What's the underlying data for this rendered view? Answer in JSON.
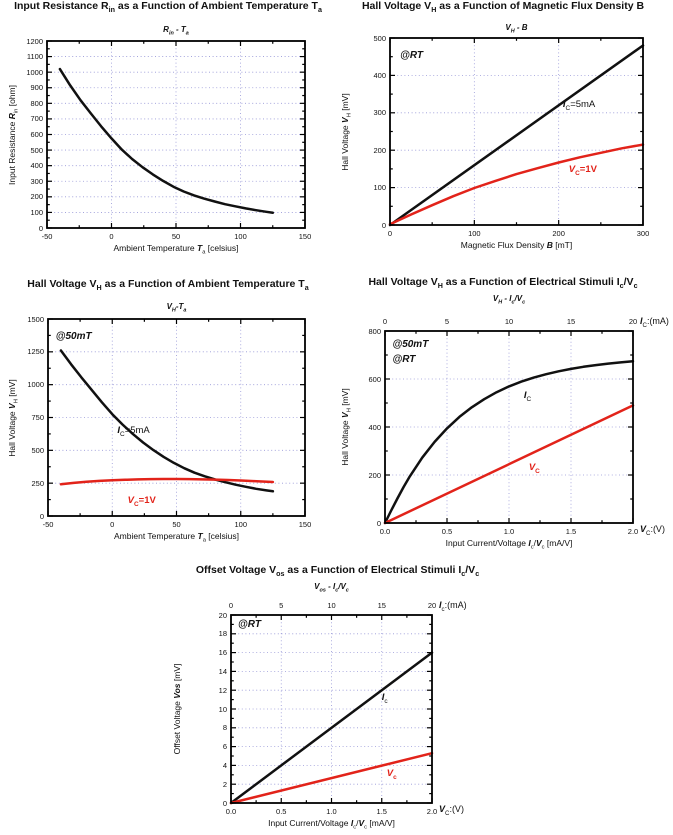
{
  "page": {
    "background": "#ffffff"
  },
  "colors": {
    "black_series": "#111111",
    "red_series": "#e2231a",
    "grid": "#9898d8",
    "frame": "#000000"
  },
  "chart_data": [
    {
      "type": "line",
      "title": "Input Resistance R_{in} as a Function of Ambient Temperature T_{a}",
      "subtitle": "R_{in} - T_{a}",
      "annotations": [],
      "x": {
        "label": "Ambient Temperature *T*_{a} [celsius]",
        "min": -50,
        "max": 150,
        "majors": [
          -50,
          0,
          50,
          100,
          150
        ],
        "tick_labels": [
          "-50",
          "0",
          "50",
          "100",
          "150"
        ]
      },
      "y": {
        "label": "Input Resistance *R*_{in} [ohm]",
        "min": 0,
        "max": 1200,
        "majors": [
          0,
          100,
          200,
          300,
          400,
          500,
          600,
          700,
          800,
          900,
          1000,
          1100,
          1200
        ],
        "tick_labels": [
          "0",
          "100",
          "200",
          "300",
          "400",
          "500",
          "600",
          "700",
          "800",
          "900",
          "1000",
          "1100",
          "1200"
        ]
      },
      "series": [
        {
          "name": "Rin",
          "color": "#111111",
          "points": [
            [
              -40,
              1020
            ],
            [
              -32,
              915
            ],
            [
              -24,
              820
            ],
            [
              -16,
              735
            ],
            [
              -8,
              652
            ],
            [
              0,
              575
            ],
            [
              8,
              503
            ],
            [
              16,
              443
            ],
            [
              24,
              390
            ],
            [
              32,
              344
            ],
            [
              40,
              302
            ],
            [
              48,
              265
            ],
            [
              56,
              234
            ],
            [
              64,
              209
            ],
            [
              72,
              188
            ],
            [
              80,
              170
            ],
            [
              88,
              153
            ],
            [
              96,
              139
            ],
            [
              104,
              126
            ],
            [
              112,
              114
            ],
            [
              120,
              104
            ],
            [
              125,
              98
            ]
          ]
        }
      ]
    },
    {
      "type": "line",
      "title": "Hall Voltage V_{H} as a Function of Magnetic Flux Density B",
      "subtitle": "V_{H} - B",
      "annotations": [
        {
          "text": "@RT",
          "x": 12,
          "y": 452
        }
      ],
      "x": {
        "label": "Magnetic Flux Density *B* [mT]",
        "min": 0,
        "max": 300,
        "majors": [
          0,
          100,
          200,
          300
        ],
        "tick_labels": [
          "0",
          "100",
          "200",
          "300"
        ]
      },
      "y": {
        "label": "Hall Voltage *V*_{H} [mV]",
        "min": 0,
        "max": 500,
        "majors": [
          0,
          100,
          200,
          300,
          400,
          500
        ],
        "tick_labels": [
          "0",
          "100",
          "200",
          "300",
          "400",
          "500"
        ]
      },
      "series": [
        {
          "name": "Ic",
          "color": "#111111",
          "label": {
            "text": "*I*_{C}=5mA",
            "x": 205,
            "y": 322
          },
          "points": [
            [
              0,
              0
            ],
            [
              300,
              480
            ]
          ]
        },
        {
          "name": "Vc",
          "color": "#e2231a",
          "label": {
            "text": "*V*_{C}=1V",
            "x": 212,
            "y": 148
          },
          "points": [
            [
              0,
              2
            ],
            [
              25,
              28
            ],
            [
              50,
              53
            ],
            [
              75,
              77
            ],
            [
              100,
              99
            ],
            [
              125,
              118
            ],
            [
              150,
              136
            ],
            [
              175,
              152
            ],
            [
              200,
              167
            ],
            [
              225,
              181
            ],
            [
              250,
              193
            ],
            [
              275,
              205
            ],
            [
              300,
              215
            ]
          ]
        }
      ]
    },
    {
      "type": "line",
      "title": "Hall Voltage V_{H} as a Function of Ambient Temperature T_{a}",
      "subtitle": "V_{H}-T_{a}",
      "annotations": [
        {
          "text": "@50mT",
          "x": -44,
          "y": 1365
        }
      ],
      "x": {
        "label": "Ambient Temperature *T*_{a} [celsius]",
        "min": -50,
        "max": 150,
        "majors": [
          -50,
          0,
          50,
          100,
          150
        ],
        "tick_labels": [
          "-50",
          "0",
          "50",
          "100",
          "150"
        ]
      },
      "y": {
        "label": "Hall Voltage *V*_{H} [mV]",
        "min": 0,
        "max": 1500,
        "majors": [
          0,
          250,
          500,
          750,
          1000,
          1250,
          1500
        ],
        "tick_labels": [
          "0",
          "250",
          "500",
          "750",
          "1000",
          "1250",
          "1500"
        ]
      },
      "series": [
        {
          "name": "Ic",
          "color": "#111111",
          "label": {
            "text": "*I*_{C}=5mA",
            "x": 4,
            "y": 648
          },
          "points": [
            [
              -40,
              1260
            ],
            [
              -32,
              1155
            ],
            [
              -24,
              1055
            ],
            [
              -16,
              960
            ],
            [
              -8,
              865
            ],
            [
              0,
              775
            ],
            [
              8,
              697
            ],
            [
              16,
              625
            ],
            [
              24,
              560
            ],
            [
              32,
              502
            ],
            [
              40,
              450
            ],
            [
              48,
              404
            ],
            [
              56,
              364
            ],
            [
              64,
              330
            ],
            [
              72,
              302
            ],
            [
              80,
              278
            ],
            [
              88,
              257
            ],
            [
              96,
              238
            ],
            [
              104,
              222
            ],
            [
              112,
              207
            ],
            [
              120,
              195
            ],
            [
              125,
              188
            ]
          ]
        },
        {
          "name": "Vc",
          "color": "#e2231a",
          "label": {
            "text": "*V*_{C}=1V",
            "x": 12,
            "y": 118
          },
          "points": [
            [
              -40,
              241
            ],
            [
              -30,
              252
            ],
            [
              -20,
              261
            ],
            [
              -10,
              267
            ],
            [
              0,
              272
            ],
            [
              10,
              276
            ],
            [
              20,
              279
            ],
            [
              30,
              281
            ],
            [
              40,
              282
            ],
            [
              50,
              282
            ],
            [
              60,
              281
            ],
            [
              70,
              279
            ],
            [
              80,
              277
            ],
            [
              90,
              274
            ],
            [
              100,
              270
            ],
            [
              110,
              266
            ],
            [
              125,
              259
            ]
          ]
        }
      ]
    },
    {
      "type": "line",
      "title": "Hall Voltage V_{H} as a Function of Electrical Stimuli I_{c}/V_{c}",
      "subtitle": "V_{H} - I_{c}/V_{c}",
      "annotations": [
        {
          "text": "@50mT",
          "x": 0.06,
          "y": 742
        },
        {
          "text": "@RT",
          "x": 0.06,
          "y": 678
        }
      ],
      "x": {
        "label": "Input Current/Voltage *I*_{c}/*V*_{c}  [mA/V]",
        "min": 0,
        "max": 2,
        "majors": [
          0,
          0.5,
          1.0,
          1.5,
          2.0
        ],
        "tick_labels": [
          "0.0",
          "0.5",
          "1.0",
          "1.5",
          "2.0"
        ],
        "unit_label": "*V*_{C}:(V)"
      },
      "x_top": {
        "min": 0,
        "max": 20,
        "majors": [
          0,
          5,
          10,
          15,
          20
        ],
        "tick_labels": [
          "0",
          "5",
          "10",
          "15",
          "20"
        ],
        "unit_label": "*I*_{C}:(mA)"
      },
      "y": {
        "label": "Hall Voltage *V*_{H} [mV]",
        "min": 0,
        "max": 800,
        "majors": [
          0,
          200,
          400,
          600,
          800
        ],
        "tick_labels": [
          "0",
          "200",
          "400",
          "600",
          "800"
        ]
      },
      "series": [
        {
          "name": "Ic",
          "color": "#111111",
          "label": {
            "text": "*I*_{C}",
            "x": 1.12,
            "y": 528
          },
          "points": [
            [
              0,
              0
            ],
            [
              0.05,
              52
            ],
            [
              0.1,
              102
            ],
            [
              0.15,
              150
            ],
            [
              0.2,
              194
            ],
            [
              0.3,
              272
            ],
            [
              0.4,
              338
            ],
            [
              0.5,
              394
            ],
            [
              0.6,
              442
            ],
            [
              0.7,
              482
            ],
            [
              0.8,
              516
            ],
            [
              0.9,
              545
            ],
            [
              1.0,
              569
            ],
            [
              1.1,
              589
            ],
            [
              1.2,
              606
            ],
            [
              1.3,
              620
            ],
            [
              1.4,
              632
            ],
            [
              1.5,
              642
            ],
            [
              1.6,
              651
            ],
            [
              1.7,
              658
            ],
            [
              1.8,
              664
            ],
            [
              1.9,
              669
            ],
            [
              2.0,
              674
            ]
          ]
        },
        {
          "name": "Vc",
          "color": "#e2231a",
          "label": {
            "text": "*V*_{C}",
            "x": 1.16,
            "y": 228
          },
          "points": [
            [
              0,
              0
            ],
            [
              2.0,
              490
            ]
          ]
        }
      ]
    },
    {
      "type": "line",
      "title": "Offset Voltage V_{os} as a Function of Electrical Stimuli I_{c}/V_{c}",
      "subtitle": "V_{os} - I_{c}/V_{c}",
      "annotations": [
        {
          "text": "@RT",
          "x": 0.07,
          "y": 18.9
        }
      ],
      "x": {
        "label": "Input Current/Voltage *I*_{c}/*V*_{c}  [mA/V]",
        "min": 0,
        "max": 2,
        "majors": [
          0,
          0.5,
          1.0,
          1.5,
          2.0
        ],
        "tick_labels": [
          "0.0",
          "0.5",
          "1.0",
          "1.5",
          "2.0"
        ],
        "unit_label": "*V*_{C}:(V)"
      },
      "x_top": {
        "min": 0,
        "max": 20,
        "majors": [
          0,
          5,
          10,
          15,
          20
        ],
        "tick_labels": [
          "0",
          "5",
          "10",
          "15",
          "20"
        ],
        "unit_label": "*I*_{c}:(mA)"
      },
      "y": {
        "label": "Offset Voltage *Vos* [mV]",
        "min": 0,
        "max": 20,
        "majors": [
          0,
          2,
          4,
          6,
          8,
          10,
          12,
          14,
          16,
          18,
          20
        ],
        "tick_labels": [
          "0",
          "2",
          "4",
          "6",
          "8",
          "10",
          "12",
          "14",
          "16",
          "18",
          "20"
        ]
      },
      "series": [
        {
          "name": "Ic",
          "color": "#111111",
          "label": {
            "text": "*I*_{c}",
            "x": 1.5,
            "y": 11.2
          },
          "points": [
            [
              0,
              0
            ],
            [
              2.0,
              16
            ]
          ]
        },
        {
          "name": "Vc",
          "color": "#e2231a",
          "label": {
            "text": "*V*_{c}",
            "x": 1.55,
            "y": 3.05
          },
          "points": [
            [
              0,
              0
            ],
            [
              2.0,
              5.3
            ]
          ]
        }
      ]
    }
  ]
}
